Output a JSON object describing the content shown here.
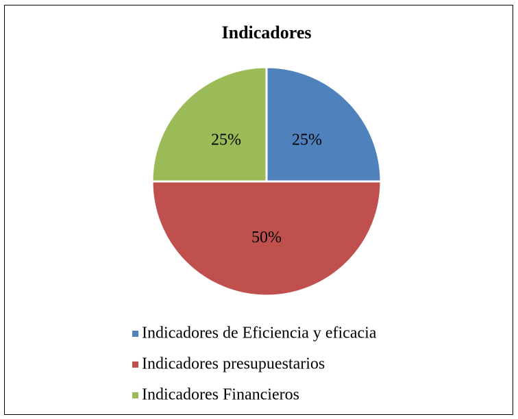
{
  "chart_data": {
    "type": "pie",
    "title": "Indicadores",
    "categories": [
      "Indicadores de Eficiencia y eficacia",
      "Indicadores presupuestarios",
      "Indicadores Financieros"
    ],
    "values": [
      25,
      50,
      25
    ],
    "value_labels": [
      "25%",
      "50%",
      "25%"
    ],
    "colors": [
      "#4f81bd",
      "#c0504d",
      "#9bbb59"
    ],
    "legend": "bottom"
  }
}
